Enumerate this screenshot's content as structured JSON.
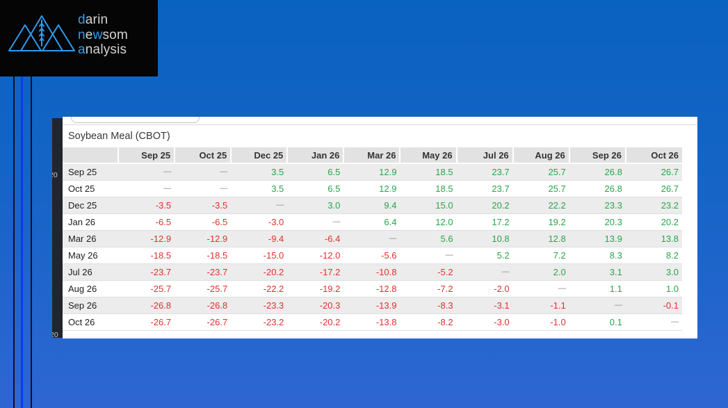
{
  "logo": {
    "icon": "mountains-wheat-icon",
    "lines": [
      [
        {
          "text": "d",
          "accent": true
        },
        {
          "text": "arin",
          "accent": false
        }
      ],
      [
        {
          "text": "n",
          "accent": true
        },
        {
          "text": "e",
          "accent": false
        },
        {
          "text": "w",
          "accent": true
        },
        {
          "text": "som",
          "accent": false
        }
      ],
      [
        {
          "text": "a",
          "accent": true
        },
        {
          "text": "nalysis",
          "accent": false
        }
      ]
    ]
  },
  "chart_strip": {
    "labels": [
      "20",
      "20"
    ]
  },
  "panel": {
    "title": "Soybean Meal (CBOT)",
    "table": {
      "columns": [
        "Sep 25",
        "Oct 25",
        "Dec 25",
        "Jan 26",
        "Mar 26",
        "May 26",
        "Jul 26",
        "Aug 26",
        "Sep 26",
        "Oct 26"
      ],
      "rows": [
        {
          "label": "Sep 25",
          "values": [
            "—",
            "—",
            "3.5",
            "6.5",
            "12.9",
            "18.5",
            "23.7",
            "25.7",
            "26.8",
            "26.7"
          ]
        },
        {
          "label": "Oct 25",
          "values": [
            "—",
            "—",
            "3.5",
            "6.5",
            "12.9",
            "18.5",
            "23.7",
            "25.7",
            "26.8",
            "26.7"
          ]
        },
        {
          "label": "Dec 25",
          "values": [
            "-3.5",
            "-3.5",
            "—",
            "3.0",
            "9.4",
            "15.0",
            "20.2",
            "22.2",
            "23.3",
            "23.2"
          ]
        },
        {
          "label": "Jan 26",
          "values": [
            "-6.5",
            "-6.5",
            "-3.0",
            "—",
            "6.4",
            "12.0",
            "17.2",
            "19.2",
            "20.3",
            "20.2"
          ]
        },
        {
          "label": "Mar 26",
          "values": [
            "-12.9",
            "-12.9",
            "-9.4",
            "-6.4",
            "—",
            "5.6",
            "10.8",
            "12.8",
            "13.9",
            "13.8"
          ]
        },
        {
          "label": "May 26",
          "values": [
            "-18.5",
            "-18.5",
            "-15.0",
            "-12.0",
            "-5.6",
            "—",
            "5.2",
            "7.2",
            "8.3",
            "8.2"
          ]
        },
        {
          "label": "Jul 26",
          "values": [
            "-23.7",
            "-23.7",
            "-20.2",
            "-17.2",
            "-10.8",
            "-5.2",
            "—",
            "2.0",
            "3.1",
            "3.0"
          ]
        },
        {
          "label": "Aug 26",
          "values": [
            "-25.7",
            "-25.7",
            "-22.2",
            "-19.2",
            "-12.8",
            "-7.2",
            "-2.0",
            "—",
            "1.1",
            "1.0"
          ]
        },
        {
          "label": "Sep 26",
          "values": [
            "-26.8",
            "-26.8",
            "-23.3",
            "-20.3",
            "-13.9",
            "-8.3",
            "-3.1",
            "-1.1",
            "—",
            "-0.1"
          ]
        },
        {
          "label": "Oct 26",
          "values": [
            "-26.7",
            "-26.7",
            "-23.2",
            "-20.2",
            "-13.8",
            "-8.2",
            "-3.0",
            "-1.0",
            "0.1",
            "—"
          ]
        }
      ]
    }
  },
  "colors": {
    "accent": "#2e9bf0",
    "positive": "#28a44b",
    "negative": "#e03030",
    "dash": "#8a8a8a",
    "line_blue": "#0a3ce8"
  }
}
